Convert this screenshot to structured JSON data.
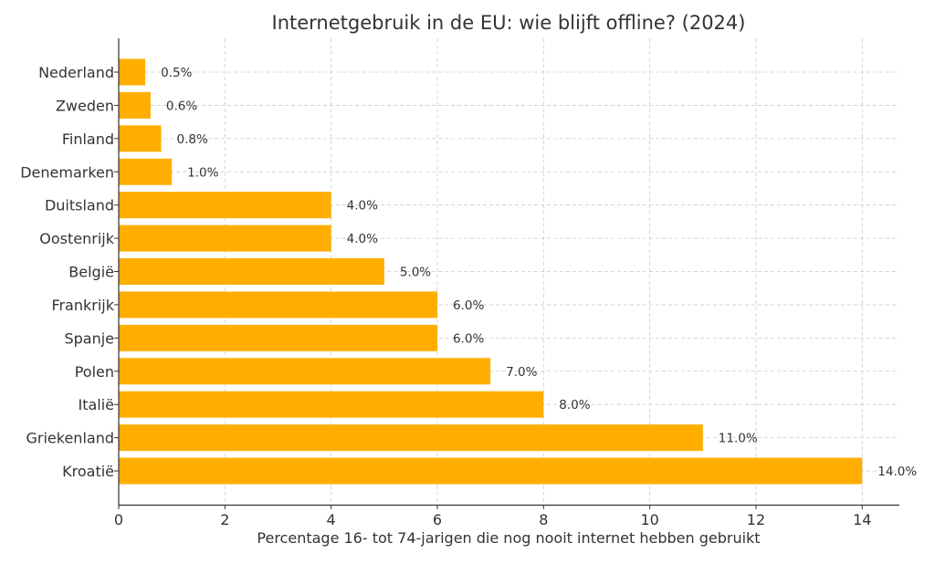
{
  "chart_data": {
    "type": "bar",
    "orientation": "horizontal",
    "title": "Internetgebruik in de EU: wie blijft offline? (2024)",
    "xlabel": "Percentage 16- tot 74-jarigen die nog nooit internet hebben gebruikt",
    "ylabel": "",
    "categories": [
      "Nederland",
      "Zweden",
      "Finland",
      "Denemarken",
      "Duitsland",
      "Oostenrijk",
      "België",
      "Frankrijk",
      "Spanje",
      "Polen",
      "Italië",
      "Griekenland",
      "Kroatië"
    ],
    "values": [
      0.5,
      0.6,
      0.8,
      1.0,
      4.0,
      4.0,
      5.0,
      6.0,
      6.0,
      7.0,
      8.0,
      11.0,
      14.0
    ],
    "data_labels": [
      "0.5%",
      "0.6%",
      "0.8%",
      "1.0%",
      "4.0%",
      "4.0%",
      "5.0%",
      "6.0%",
      "6.0%",
      "7.0%",
      "8.0%",
      "11.0%",
      "14.0%"
    ],
    "xticks": [
      "0",
      "2",
      "4",
      "6",
      "8",
      "10",
      "12",
      "14"
    ],
    "xlim": [
      0,
      14.7
    ],
    "grid": true,
    "bar_color": "#FFAE00"
  }
}
